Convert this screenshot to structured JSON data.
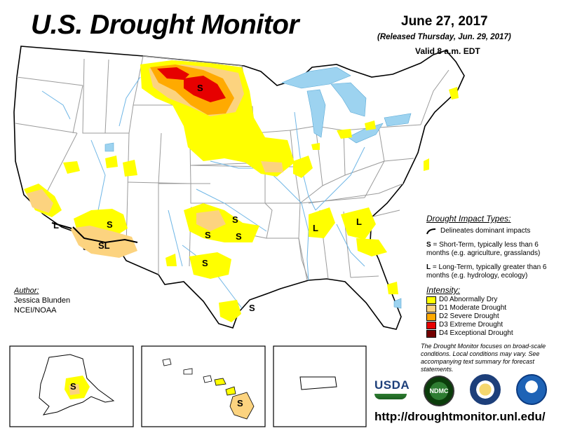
{
  "header": {
    "title": "U.S. Drought Monitor",
    "date": "June 27, 2017",
    "released": "(Released Thursday, Jun. 29, 2017)",
    "valid": "Valid 8 a.m. EDT"
  },
  "author": {
    "heading": "Author:",
    "name": "Jessica Blunden",
    "org": "NCEI/NOAA"
  },
  "legend": {
    "impact_heading": "Drought Impact Types:",
    "impact_line_label": "Delineates dominant impacts",
    "short_term_symbol": "S",
    "short_term_desc": "= Short-Term, typically less than 6 months (e.g. agriculture, grasslands)",
    "long_term_symbol": "L",
    "long_term_desc": "= Long-Term, typically greater than 6 months (e.g. hydrology, ecology)",
    "intensity_heading": "Intensity:",
    "intensity": [
      {
        "label": "D0 Abnormally Dry",
        "color": "#ffff00"
      },
      {
        "label": "D1 Moderate Drought",
        "color": "#fcd37f"
      },
      {
        "label": "D2 Severe Drought",
        "color": "#ffaa00"
      },
      {
        "label": "D3 Extreme Drought",
        "color": "#e60000"
      },
      {
        "label": "D4 Exceptional Drought",
        "color": "#730000"
      }
    ]
  },
  "note": "The Drought Monitor focuses on broad-scale conditions. Local conditions may vary. See accompanying text summary for forecast statements.",
  "logos": {
    "usda": "USDA",
    "ndmc": "NDMC"
  },
  "url": "http://droughtmonitor.unl.edu/",
  "map_labels": {
    "s": "S",
    "l": "L",
    "sl": "SL"
  },
  "colors": {
    "water": "#9dd3f0",
    "river": "#6fb6e6",
    "border": "#000000",
    "state_line": "#9b9b9b"
  }
}
